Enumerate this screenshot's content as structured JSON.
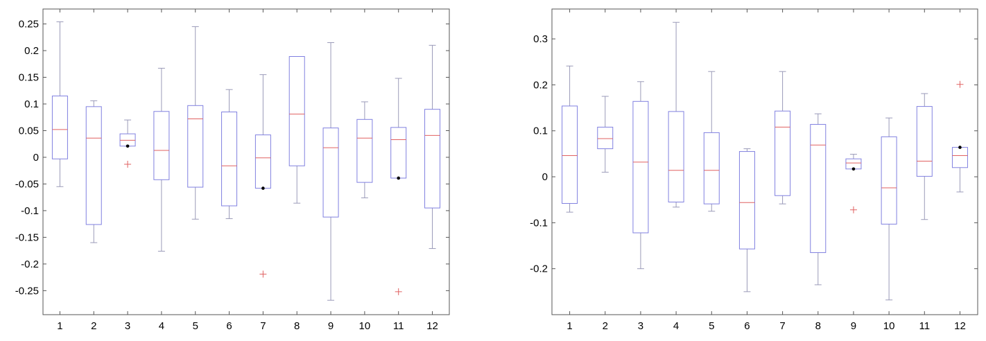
{
  "chart_data": [
    {
      "type": "box",
      "categories": [
        "1",
        "2",
        "3",
        "4",
        "5",
        "6",
        "7",
        "8",
        "9",
        "10",
        "11",
        "12"
      ],
      "ylim": [
        -0.295,
        0.278
      ],
      "yticks": [
        0.25,
        0.2,
        0.15,
        0.1,
        0.05,
        0,
        -0.05,
        -0.1,
        -0.15,
        -0.2,
        -0.25
      ],
      "ytick_labels": [
        "0.25",
        "0.2",
        "0.15",
        "0.1",
        "0.05",
        "0",
        "-0.05",
        "-0.1",
        "-0.15",
        "-0.2",
        "-0.25"
      ],
      "grid": false,
      "colors": {
        "box": "#8080e0",
        "whisker": "#9a9ab8",
        "median": "#e06060",
        "outlier": "#e06060",
        "point": "#000000"
      },
      "boxes": [
        {
          "whisker_low": -0.055,
          "q1": -0.003,
          "median": 0.052,
          "q3": 0.115,
          "whisker_high": 0.254,
          "outliers": [],
          "points": []
        },
        {
          "whisker_low": -0.16,
          "q1": -0.126,
          "median": 0.036,
          "q3": 0.095,
          "whisker_high": 0.106,
          "outliers": [],
          "points": []
        },
        {
          "whisker_low": 0.021,
          "q1": 0.021,
          "median": 0.032,
          "q3": 0.044,
          "whisker_high": 0.07,
          "outliers": [
            -0.013
          ],
          "points": [
            0.021
          ]
        },
        {
          "whisker_low": -0.176,
          "q1": -0.042,
          "median": 0.013,
          "q3": 0.086,
          "whisker_high": 0.167,
          "outliers": [],
          "points": []
        },
        {
          "whisker_low": -0.116,
          "q1": -0.056,
          "median": 0.072,
          "q3": 0.097,
          "whisker_high": 0.245,
          "outliers": [],
          "points": []
        },
        {
          "whisker_low": -0.115,
          "q1": -0.091,
          "median": -0.016,
          "q3": 0.085,
          "whisker_high": 0.127,
          "outliers": [],
          "points": []
        },
        {
          "whisker_low": -0.058,
          "q1": -0.058,
          "median": -0.001,
          "q3": 0.042,
          "whisker_high": 0.155,
          "outliers": [
            -0.219
          ],
          "points": [
            -0.058
          ]
        },
        {
          "whisker_low": -0.086,
          "q1": -0.016,
          "median": 0.081,
          "q3": 0.189,
          "whisker_high": 0.189,
          "outliers": [],
          "points": []
        },
        {
          "whisker_low": -0.268,
          "q1": -0.112,
          "median": 0.018,
          "q3": 0.055,
          "whisker_high": 0.215,
          "outliers": [],
          "points": []
        },
        {
          "whisker_low": -0.076,
          "q1": -0.047,
          "median": 0.036,
          "q3": 0.071,
          "whisker_high": 0.104,
          "outliers": [],
          "points": []
        },
        {
          "whisker_low": -0.039,
          "q1": -0.039,
          "median": 0.033,
          "q3": 0.056,
          "whisker_high": 0.148,
          "outliers": [
            -0.252
          ],
          "points": [
            -0.039
          ]
        },
        {
          "whisker_low": -0.171,
          "q1": -0.095,
          "median": 0.041,
          "q3": 0.09,
          "whisker_high": 0.21,
          "outliers": [],
          "points": []
        }
      ]
    },
    {
      "type": "box",
      "categories": [
        "1",
        "2",
        "3",
        "4",
        "5",
        "6",
        "7",
        "8",
        "9",
        "10",
        "11",
        "12"
      ],
      "ylim": [
        -0.3,
        0.365
      ],
      "yticks": [
        0.3,
        0.2,
        0.1,
        0,
        -0.1,
        -0.2
      ],
      "ytick_labels": [
        "0.3",
        "0.2",
        "0.1",
        "0",
        "-0.1",
        "-0.2"
      ],
      "grid": false,
      "colors": {
        "box": "#8080e0",
        "whisker": "#9a9ab8",
        "median": "#e06060",
        "outlier": "#e06060",
        "point": "#000000"
      },
      "boxes": [
        {
          "whisker_low": -0.077,
          "q1": -0.058,
          "median": 0.046,
          "q3": 0.154,
          "whisker_high": 0.241,
          "outliers": [],
          "points": []
        },
        {
          "whisker_low": 0.01,
          "q1": 0.061,
          "median": 0.083,
          "q3": 0.108,
          "whisker_high": 0.175,
          "outliers": [],
          "points": []
        },
        {
          "whisker_low": -0.2,
          "q1": -0.122,
          "median": 0.032,
          "q3": 0.164,
          "whisker_high": 0.207,
          "outliers": [],
          "points": []
        },
        {
          "whisker_low": -0.066,
          "q1": -0.055,
          "median": 0.014,
          "q3": 0.142,
          "whisker_high": 0.336,
          "outliers": [],
          "points": []
        },
        {
          "whisker_low": -0.075,
          "q1": -0.059,
          "median": 0.014,
          "q3": 0.096,
          "whisker_high": 0.229,
          "outliers": [],
          "points": []
        },
        {
          "whisker_low": -0.25,
          "q1": -0.157,
          "median": -0.056,
          "q3": 0.055,
          "whisker_high": 0.061,
          "outliers": [],
          "points": []
        },
        {
          "whisker_low": -0.059,
          "q1": -0.041,
          "median": 0.108,
          "q3": 0.143,
          "whisker_high": 0.229,
          "outliers": [],
          "points": []
        },
        {
          "whisker_low": -0.235,
          "q1": -0.165,
          "median": 0.069,
          "q3": 0.114,
          "whisker_high": 0.137,
          "outliers": [],
          "points": []
        },
        {
          "whisker_low": 0.017,
          "q1": 0.017,
          "median": 0.03,
          "q3": 0.039,
          "whisker_high": 0.049,
          "outliers": [
            -0.072
          ],
          "points": [
            0.017
          ]
        },
        {
          "whisker_low": -0.268,
          "q1": -0.103,
          "median": -0.024,
          "q3": 0.087,
          "whisker_high": 0.128,
          "outliers": [],
          "points": []
        },
        {
          "whisker_low": -0.093,
          "q1": 0.001,
          "median": 0.034,
          "q3": 0.153,
          "whisker_high": 0.181,
          "outliers": [],
          "points": []
        },
        {
          "whisker_low": -0.033,
          "q1": 0.02,
          "median": 0.046,
          "q3": 0.064,
          "whisker_high": 0.064,
          "outliers": [
            0.201
          ],
          "points": [
            0.064
          ]
        }
      ]
    }
  ]
}
